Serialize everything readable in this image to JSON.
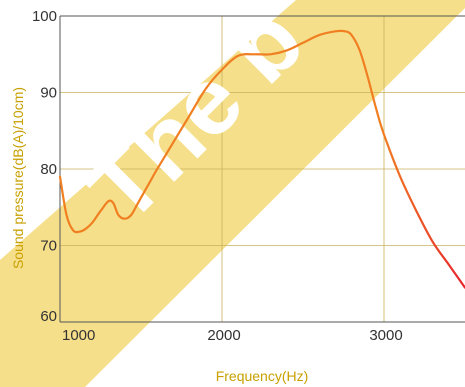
{
  "chart_data": {
    "type": "line",
    "title": "",
    "xlabel": "Frequency(Hz)",
    "ylabel": "Sound pressure(dB(A)/10cm)",
    "xlim": [
      1000,
      3500
    ],
    "ylim": [
      60,
      100
    ],
    "x_ticks": [
      1000,
      2000,
      3000
    ],
    "x_tick_labels": [
      "1000",
      "2000",
      "3000"
    ],
    "y_ticks": [
      60,
      70,
      80,
      90,
      100
    ],
    "y_tick_labels": [
      "60",
      "70",
      "80",
      "90",
      "100"
    ],
    "grid": true,
    "series": [
      {
        "x": [
          1000,
          1040,
          1080,
          1120,
          1160,
          1200,
          1250,
          1300,
          1330,
          1360,
          1400,
          1440,
          1480,
          1520,
          1560,
          1600,
          1700,
          1800,
          1900,
          2000,
          2100,
          2200,
          2300,
          2400,
          2500,
          2600,
          2700,
          2760,
          2800,
          2850,
          2900,
          2950,
          3000,
          3100,
          3200,
          3300,
          3400,
          3500
        ],
        "y": [
          79,
          74,
          72,
          71.8,
          72.2,
          73,
          74.5,
          75.8,
          75.5,
          74,
          73.5,
          74,
          75.5,
          77,
          78.5,
          80,
          83.5,
          87,
          90.5,
          93,
          94.8,
          95,
          95,
          95.5,
          96.5,
          97.5,
          98,
          98,
          97.5,
          95.5,
          92,
          88,
          84.5,
          79,
          74.5,
          70.5,
          67.5,
          64.5
        ]
      }
    ]
  },
  "style": {
    "band_color": "#f6df8a",
    "grid_color": "#c9b25e",
    "line_color": "#f07f22",
    "line_color_tail": "#e8242c",
    "label_color": "#c8a000"
  }
}
